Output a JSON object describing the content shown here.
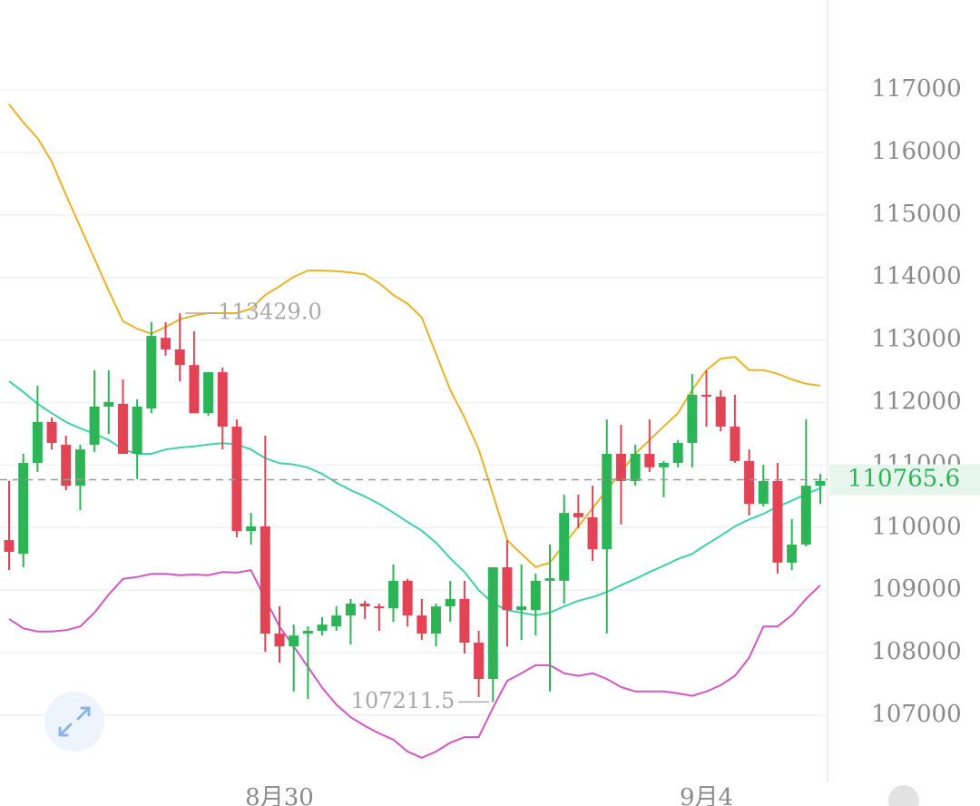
{
  "chart_data": {
    "type": "candlestick",
    "categories": [
      null,
      null,
      null,
      null,
      null,
      null,
      null,
      null,
      null,
      null,
      null,
      null,
      null,
      null,
      null,
      null,
      null,
      null,
      null,
      "8月30",
      null,
      null,
      null,
      null,
      null,
      null,
      null,
      null,
      null,
      null,
      null,
      null,
      null,
      null,
      null,
      null,
      null,
      null,
      null,
      null,
      null,
      null,
      null,
      null,
      null,
      null,
      null,
      null,
      null,
      "9月4",
      null,
      null,
      null,
      null,
      null,
      null,
      null,
      null
    ],
    "open": [
      109800,
      109580,
      111035,
      111690,
      111325,
      110670,
      111325,
      111935,
      111980,
      111180,
      111905,
      113035,
      112850,
      112600,
      111830,
      112485,
      111615,
      109945,
      110020,
      108305,
      108100,
      108305,
      108350,
      108420,
      108595,
      108785,
      108740,
      108710,
      109150,
      108595,
      108305,
      108740,
      108860,
      108160,
      107580,
      109365,
      108680,
      108680,
      109150,
      109150,
      110235,
      110165,
      109655,
      111180,
      110745,
      111180,
      110965,
      111035,
      111355,
      112125,
      112095,
      111615,
      111065,
      110380,
      110745,
      109440,
      109730,
      110670
    ],
    "high": [
      110745,
      111180,
      112270,
      111760,
      111470,
      111325,
      112515,
      112515,
      112370,
      112050,
      113285,
      113285,
      113429,
      113140,
      112485,
      112560,
      111730,
      110235,
      111470,
      108740,
      108450,
      108420,
      108570,
      108740,
      108860,
      108830,
      108785,
      109410,
      109180,
      108860,
      108785,
      109150,
      109150,
      108350,
      109365,
      109800,
      109410,
      109265,
      109730,
      110525,
      110525,
      110670,
      111730,
      111645,
      111325,
      111730,
      111065,
      111400,
      112455,
      112515,
      112195,
      112125,
      111250,
      111005,
      111035,
      110135,
      111730,
      110860
    ],
    "low": [
      109322,
      109365,
      110890,
      111250,
      110600,
      110280,
      111210,
      111500,
      111180,
      110775,
      111830,
      112750,
      112340,
      111830,
      111790,
      111250,
      109845,
      109730,
      108015,
      107840,
      107380,
      107260,
      108275,
      108350,
      108130,
      108540,
      108350,
      108495,
      108420,
      108205,
      108100,
      108495,
      107985,
      107290,
      107211.5,
      108100,
      108205,
      108275,
      107380,
      108785,
      109990,
      109470,
      108305,
      110050,
      110670,
      110890,
      110485,
      110965,
      110965,
      111615,
      111540,
      111035,
      110195,
      110340,
      109265,
      109320,
      109700,
      110380
    ],
    "close": [
      109613,
      111035,
      111690,
      111355,
      110670,
      111250,
      111935,
      112010,
      111180,
      111935,
      113065,
      112850,
      112600,
      111830,
      112485,
      111615,
      109945,
      110020,
      108305,
      108100,
      108275,
      108350,
      108450,
      108595,
      108785,
      108740,
      108710,
      109150,
      108595,
      108305,
      108740,
      108860,
      108160,
      107580,
      109365,
      108680,
      108740,
      109150,
      109190,
      110235,
      110165,
      109655,
      111180,
      110745,
      111180,
      110965,
      111035,
      111355,
      112125,
      112095,
      111615,
      111065,
      110380,
      110745,
      109440,
      109730,
      110670,
      110745
    ],
    "up_color": "#2bb556",
    "down_color": "#e24456",
    "bands": [
      {
        "color": "#e9b326",
        "values": [
          116770,
          116480,
          116230,
          115850,
          115320,
          114810,
          114300,
          113790,
          113300,
          113180,
          113100,
          113210,
          113330,
          113390,
          113430,
          113430,
          113430,
          113500,
          113720,
          113860,
          114010,
          114110,
          114110,
          114100,
          114080,
          114050,
          113910,
          113720,
          113580,
          113360,
          112780,
          112200,
          111760,
          111250,
          110530,
          109800,
          109580,
          109370,
          109440,
          109730,
          110020,
          110310,
          110600,
          110890,
          111180,
          111400,
          111620,
          111830,
          112200,
          112520,
          112700,
          112730,
          112520,
          112520,
          112460,
          112370,
          112300,
          112270
        ]
      },
      {
        "color": "#3fd1a9",
        "values": [
          112340,
          112170,
          111980,
          111830,
          111690,
          111590,
          111500,
          111400,
          111250,
          111180,
          111180,
          111250,
          111280,
          111300,
          111330,
          111350,
          111330,
          111250,
          111110,
          111030,
          111010,
          110960,
          110860,
          110720,
          110600,
          110500,
          110380,
          110240,
          110090,
          109950,
          109760,
          109510,
          109290,
          109000,
          108790,
          108680,
          108640,
          108600,
          108640,
          108740,
          108830,
          108890,
          108970,
          109080,
          109180,
          109290,
          109390,
          109500,
          109580,
          109730,
          109870,
          110020,
          110130,
          110220,
          110340,
          110430,
          110540,
          110630
        ]
      },
      {
        "color": "#d355c2",
        "values": [
          108540,
          108390,
          108340,
          108340,
          108360,
          108420,
          108640,
          108930,
          109180,
          109210,
          109260,
          109260,
          109240,
          109250,
          109240,
          109290,
          109280,
          109320,
          108860,
          108420,
          108100,
          107770,
          107440,
          107170,
          106970,
          106830,
          106710,
          106610,
          106420,
          106320,
          106420,
          106560,
          106650,
          106650,
          107120,
          107550,
          107670,
          107800,
          107800,
          107670,
          107630,
          107670,
          107580,
          107450,
          107380,
          107380,
          107380,
          107350,
          107310,
          107380,
          107480,
          107630,
          107920,
          108420,
          108420,
          108600,
          108860,
          109080
        ]
      }
    ],
    "max_label": {
      "value": 113429,
      "label": "113429.0"
    },
    "min_label": 107211.5,
    "last_price": 110765.6,
    "ylim": [
      105926,
      118437
    ],
    "yticks": [
      107000,
      108000,
      109000,
      110000,
      111000,
      112000,
      113000,
      114000,
      115000,
      116000,
      117000
    ],
    "grid": true
  }
}
